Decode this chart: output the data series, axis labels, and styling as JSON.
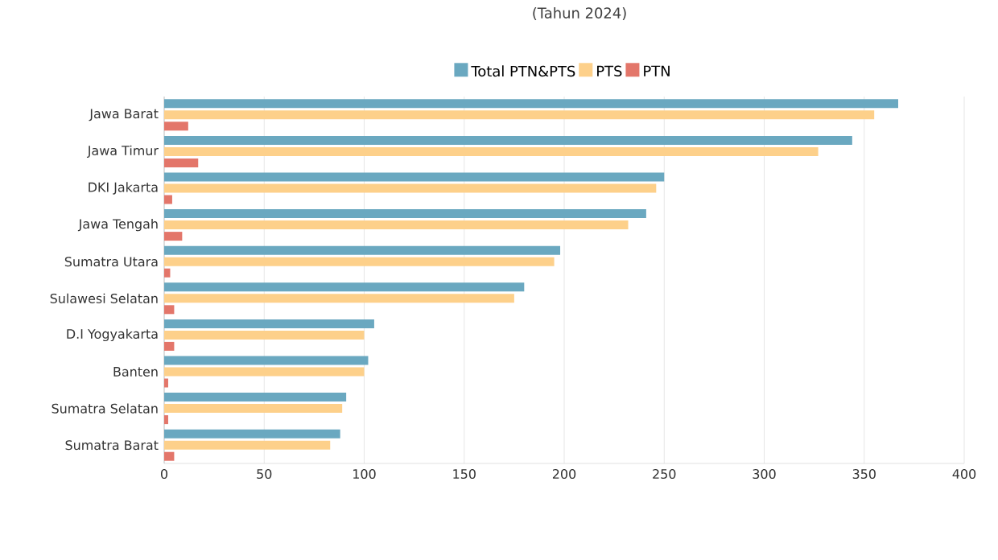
{
  "chart_data": {
    "type": "bar",
    "orientation": "horizontal",
    "subtitle": "(Tahun 2024)",
    "categories": [
      "Jawa Barat",
      "Jawa Timur",
      "DKI Jakarta",
      "Jawa Tengah",
      "Sumatra Utara",
      "Sulawesi Selatan",
      "D.I Yogyakarta",
      "Banten",
      "Sumatra Selatan",
      "Sumatra Barat"
    ],
    "series": [
      {
        "name": "Total PTN&PTS",
        "color": "#6aa8c0",
        "values": [
          367,
          344,
          250,
          241,
          198,
          180,
          105,
          102,
          91,
          88
        ]
      },
      {
        "name": "PTS",
        "color": "#fdd08a",
        "values": [
          355,
          327,
          246,
          232,
          195,
          175,
          100,
          100,
          89,
          83
        ]
      },
      {
        "name": "PTN",
        "color": "#e3766a",
        "values": [
          12,
          17,
          4,
          9,
          3,
          5,
          5,
          2,
          2,
          5
        ]
      }
    ],
    "xlim": [
      0,
      400
    ],
    "xticks": [
      0,
      50,
      100,
      150,
      200,
      250,
      300,
      350,
      400
    ],
    "grid": "x",
    "legend": "top"
  }
}
